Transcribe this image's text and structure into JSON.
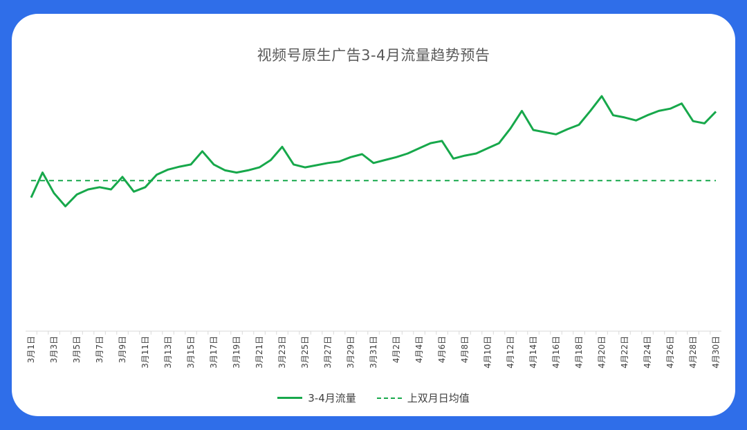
{
  "chart_data": {
    "type": "line",
    "title": "视频号原生广告3-4月流量趋势预告",
    "categories": [
      "3月1日",
      "3月2日",
      "3月3日",
      "3月4日",
      "3月5日",
      "3月6日",
      "3月7日",
      "3月8日",
      "3月9日",
      "3月10日",
      "3月11日",
      "3月12日",
      "3月13日",
      "3月14日",
      "3月15日",
      "3月16日",
      "3月17日",
      "3月18日",
      "3月19日",
      "3月20日",
      "3月21日",
      "3月22日",
      "3月23日",
      "3月24日",
      "3月25日",
      "3月26日",
      "3月27日",
      "3月28日",
      "3月29日",
      "3月30日",
      "3月31日",
      "4月1日",
      "4月2日",
      "4月3日",
      "4月4日",
      "4月5日",
      "4月6日",
      "4月7日",
      "4月8日",
      "4月9日",
      "4月10日",
      "4月11日",
      "4月12日",
      "4月13日",
      "4月14日",
      "4月15日",
      "4月16日",
      "4月17日",
      "4月18日",
      "4月19日",
      "4月20日",
      "4月21日",
      "4月22日",
      "4月23日",
      "4月24日",
      "4月25日",
      "4月26日",
      "4月27日",
      "4月28日",
      "4月29日",
      "4月30日"
    ],
    "tick_labels": [
      "3月1日",
      "3月3日",
      "3月5日",
      "3月7日",
      "3月9日",
      "3月11日",
      "3月13日",
      "3月15日",
      "3月17日",
      "3月19日",
      "3月21日",
      "3月23日",
      "3月25日",
      "3月27日",
      "3月29日",
      "3月31日",
      "4月2日",
      "4月4日",
      "4月6日",
      "4月8日",
      "4月10日",
      "4月12日",
      "4月14日",
      "4月16日",
      "4月18日",
      "4月20日",
      "4月22日",
      "4月24日",
      "4月26日",
      "4月28日",
      "4月30日"
    ],
    "series": [
      {
        "name": "3-4月流量",
        "style": "solid",
        "values": [
          182,
          216,
          188,
          170,
          186,
          193,
          196,
          193,
          210,
          190,
          196,
          213,
          220,
          224,
          227,
          245,
          227,
          219,
          216,
          219,
          223,
          233,
          251,
          227,
          223,
          226,
          229,
          231,
          237,
          241,
          229,
          233,
          237,
          242,
          249,
          256,
          259,
          235,
          239,
          242,
          249,
          256,
          276,
          300,
          274,
          271,
          268,
          275,
          281,
          300,
          320,
          294,
          291,
          287,
          294,
          300,
          303,
          310,
          286,
          283,
          299
        ]
      },
      {
        "name": "上双月日均值",
        "style": "dashed",
        "values": [
          205,
          205,
          205,
          205,
          205,
          205,
          205,
          205,
          205,
          205,
          205,
          205,
          205,
          205,
          205,
          205,
          205,
          205,
          205,
          205,
          205,
          205,
          205,
          205,
          205,
          205,
          205,
          205,
          205,
          205,
          205,
          205,
          205,
          205,
          205,
          205,
          205,
          205,
          205,
          205,
          205,
          205,
          205,
          205,
          205,
          205,
          205,
          205,
          205,
          205,
          205,
          205,
          205,
          205,
          205,
          205,
          205,
          205,
          205,
          205,
          205
        ]
      }
    ],
    "ylim": [
      0,
      370
    ],
    "grid": false,
    "legend_position": "bottom",
    "colors": {
      "line": "#17a84b",
      "frame": "#2f6ee9",
      "axis": "#d9d9d9"
    }
  }
}
